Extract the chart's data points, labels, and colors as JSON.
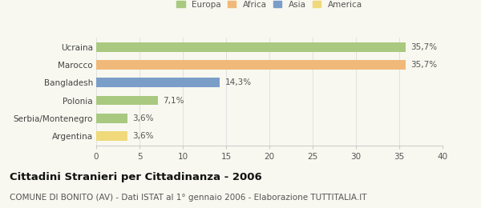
{
  "categories": [
    "Ucraina",
    "Marocco",
    "Bangladesh",
    "Polonia",
    "Serbia/Montenegro",
    "Argentina"
  ],
  "values": [
    35.7,
    35.7,
    14.3,
    7.1,
    3.6,
    3.6
  ],
  "labels": [
    "35,7%",
    "35,7%",
    "14,3%",
    "7,1%",
    "3,6%",
    "3,6%"
  ],
  "bar_colors": [
    "#a8c97f",
    "#f0b97a",
    "#7b9ec9",
    "#a8c97f",
    "#a8c97f",
    "#f0d97a"
  ],
  "legend_labels": [
    "Europa",
    "Africa",
    "Asia",
    "America"
  ],
  "legend_colors": [
    "#a8c97f",
    "#f0b97a",
    "#7b9ec9",
    "#f0d97a"
  ],
  "xlim": [
    0,
    40
  ],
  "xticks": [
    0,
    5,
    10,
    15,
    20,
    25,
    30,
    35,
    40
  ],
  "title": "Cittadini Stranieri per Cittadinanza - 2006",
  "subtitle": "COMUNE DI BONITO (AV) - Dati ISTAT al 1° gennaio 2006 - Elaborazione TUTTITALIA.IT",
  "title_fontsize": 9.5,
  "subtitle_fontsize": 7.5,
  "bg_color": "#f8f8f0",
  "bar_height": 0.52,
  "label_fontsize": 7.5,
  "tick_fontsize": 7.5
}
